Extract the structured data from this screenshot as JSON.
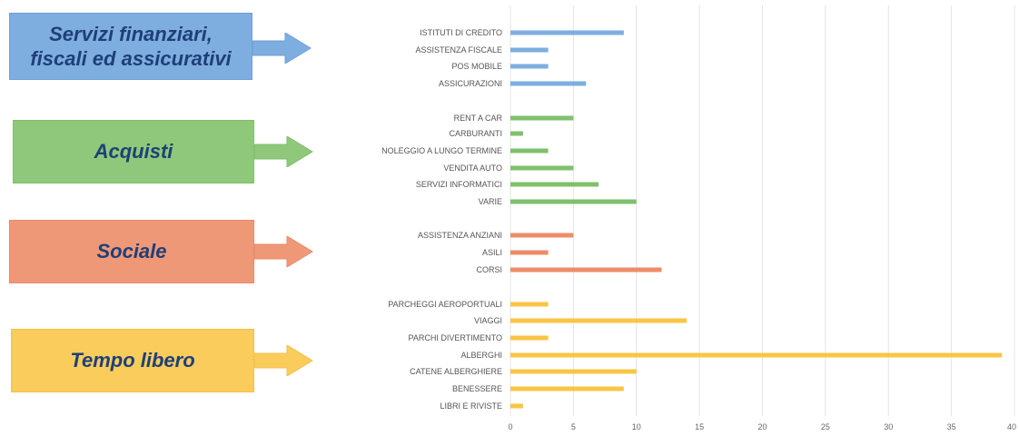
{
  "groups": [
    {
      "title_line1": "Servizi finanziari,",
      "title_line2": "fiscali ed assicurativi",
      "color": "#6f9fd8",
      "fill": "#7eaee0",
      "bar_color": "#7eaee0"
    },
    {
      "title_line1": "Acquisti",
      "title_line2": "",
      "color": "#7fbf6a",
      "fill": "#8fc87a",
      "bar_color": "#7fc06c"
    },
    {
      "title_line1": "Sociale",
      "title_line2": "",
      "color": "#e8896a",
      "fill": "#ef9878",
      "bar_color": "#ee8c68"
    },
    {
      "title_line1": "Tempo libero",
      "title_line2": "",
      "color": "#f5c048",
      "fill": "#f9cc5c",
      "bar_color": "#f9c545"
    }
  ],
  "chart_data": {
    "type": "bar",
    "orientation": "horizontal",
    "categories": [
      "ISTITUTI DI CREDITO",
      "ASSISTENZA FISCALE",
      "POS MOBILE",
      "ASSICURAZIONI",
      "RENT A CAR",
      "CARBURANTI",
      "NOLEGGIO A LUNGO TERMINE",
      "VENDITA AUTO",
      "SERVIZI INFORMATICI",
      "VARIE",
      "ASSISTENZA ANZIANI",
      "ASILI",
      "CORSI",
      "PARCHEGGI AEROPORTUALI",
      "VIAGGI",
      "PARCHI DIVERTIMENTO",
      "ALBERGHI",
      "CATENE ALBERGHIERE",
      "BENESSERE",
      "LIBRI E RIVISTE"
    ],
    "values": [
      9,
      3,
      3,
      6,
      5,
      1,
      3,
      5,
      7,
      10,
      5,
      3,
      12,
      3,
      14,
      3,
      39,
      10,
      9,
      1
    ],
    "category_group": [
      0,
      0,
      0,
      0,
      1,
      1,
      1,
      1,
      1,
      1,
      2,
      2,
      2,
      3,
      3,
      3,
      3,
      3,
      3,
      3
    ],
    "xlim": [
      0,
      40
    ],
    "xticks": [
      "0",
      "5",
      "10",
      "15",
      "20",
      "25",
      "30",
      "35",
      "40"
    ],
    "grid": "vertical",
    "title": "",
    "xlabel": "",
    "ylabel": ""
  }
}
